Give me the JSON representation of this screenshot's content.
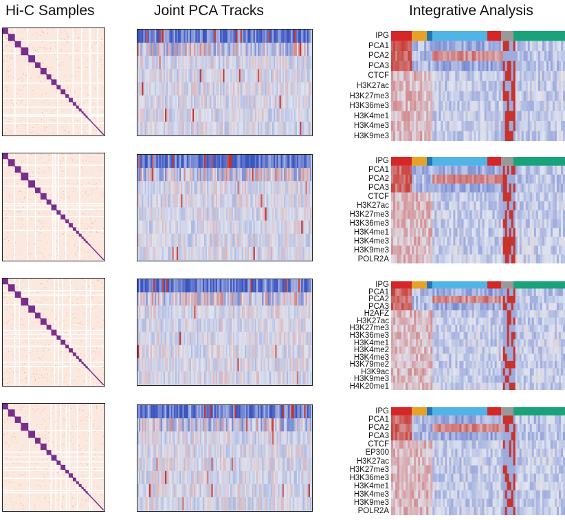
{
  "titles": {
    "hic": "Hi-C Samples",
    "pca": "Joint PCA Tracks",
    "integrative": "Integrative Analysis"
  },
  "colors": {
    "hic_background": "#fbe9df",
    "hic_domain": "#7a2e8c",
    "hic_dots": "#e9a07e",
    "pca_base": "#c9d6ef",
    "pca_blue": "#3f5fc4",
    "pca_red": "#d23a2a",
    "ipg": [
      "#d62728",
      "#e8a127",
      "#1f78b4",
      "#52b4e6",
      "#f0e442",
      "#999999",
      "#1aa37a"
    ]
  },
  "panels": [
    {
      "tracks": [
        "IPG",
        "PCA1",
        "PCA2",
        "PCA3",
        "CTCF",
        "H3K27ac",
        "H3K27me3",
        "H3K36me3",
        "H3K4me1",
        "H3K4me3",
        "H3K9me3"
      ]
    },
    {
      "tracks": [
        "IPG",
        "PCA1",
        "PCA2",
        "PCA3",
        "CTCF",
        "H3K27ac",
        "H3K27me3",
        "H3K36me3",
        "H3K4me1",
        "H3K4me3",
        "H3K9me3",
        "POLR2A"
      ]
    },
    {
      "tracks": [
        "IPG",
        "PCA1",
        "PCA2",
        "PCA3",
        "H2AFZ",
        "H3K27ac",
        "H3K27me3",
        "H3K36me3",
        "H3K4me1",
        "H3K4me2",
        "H3K4me3",
        "H3K79me2",
        "H3K9ac",
        "H3K9me3",
        "H4K20me1"
      ]
    },
    {
      "tracks": [
        "IPG",
        "PCA1",
        "PCA2",
        "PCA3",
        "CTCF",
        "EP300",
        "H3K27ac",
        "H3K27me3",
        "H3K36me3",
        "H3K4me1",
        "H3K4me3",
        "H3K9me3",
        "POLR2A"
      ]
    }
  ]
}
